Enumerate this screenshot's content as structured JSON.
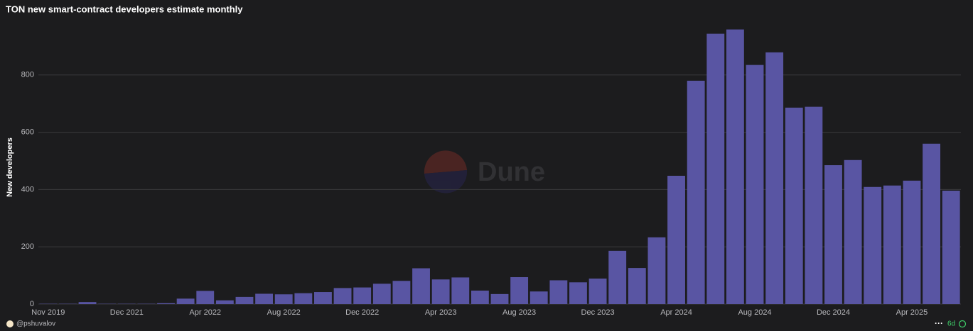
{
  "chart_data": {
    "type": "bar",
    "title": "TON new smart-contract developers estimate monthly",
    "y_label": "New developers",
    "categories": [
      "Nov 2019",
      null,
      null,
      null,
      "Dec 2021",
      null,
      null,
      null,
      "Apr 2022",
      null,
      null,
      null,
      "Aug 2022",
      null,
      null,
      null,
      "Dec 2022",
      null,
      null,
      null,
      "Apr 2023",
      null,
      null,
      null,
      "Aug 2023",
      null,
      null,
      null,
      "Dec 2023",
      null,
      null,
      null,
      "Apr 2024",
      null,
      null,
      null,
      "Aug 2024",
      null,
      null,
      null,
      "Dec 2024",
      null,
      null,
      null,
      "Apr 2025",
      null,
      null
    ],
    "values": [
      1,
      1,
      7,
      1,
      1,
      1,
      3,
      19,
      46,
      13,
      25,
      36,
      34,
      38,
      42,
      56,
      58,
      71,
      81,
      125,
      86,
      93,
      47,
      35,
      94,
      44,
      83,
      76,
      89,
      186,
      126,
      233,
      448,
      780,
      944,
      959,
      835,
      879,
      686,
      689,
      485,
      503,
      409,
      414,
      431,
      560,
      396
    ],
    "color": "#5955a3",
    "ylim": [
      0,
      1000
    ],
    "yticks": [
      0,
      200,
      400,
      600,
      800
    ],
    "grid": true,
    "watermark": "Dune",
    "author": "@pshuvalov",
    "age": "6d"
  }
}
